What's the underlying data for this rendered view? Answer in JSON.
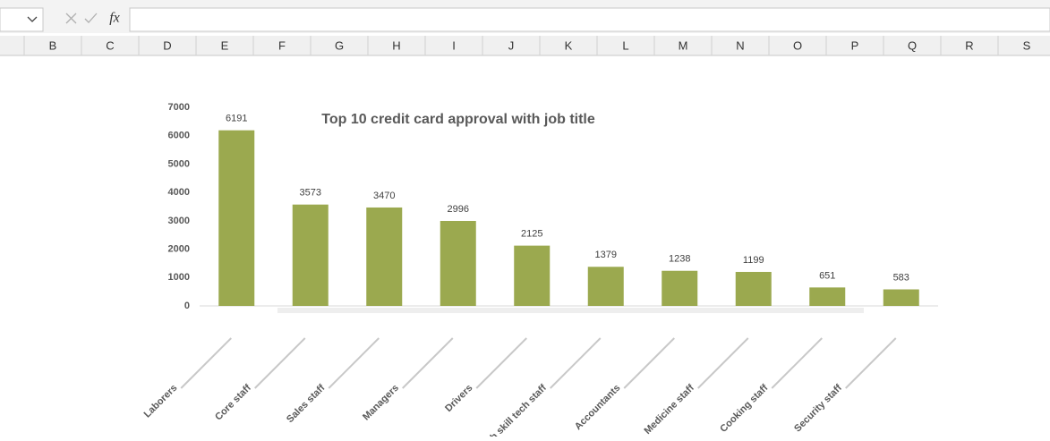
{
  "formula_bar": {
    "function_icon": "fx"
  },
  "column_headers": [
    "B",
    "C",
    "D",
    "E",
    "F",
    "G",
    "H",
    "I",
    "J",
    "K",
    "L",
    "M",
    "N",
    "O",
    "P",
    "Q",
    "R",
    "S"
  ],
  "chart_data": {
    "type": "bar",
    "title": "Top 10 credit card approval  with job title",
    "categories": [
      "Laborers",
      "Core staff",
      "Sales staff",
      "Managers",
      "Drivers",
      "High skill tech staff",
      "Accountants",
      "Medicine staff",
      "Cooking staff",
      "Security staff"
    ],
    "values": [
      6191,
      3573,
      3470,
      2996,
      2125,
      1379,
      1238,
      1199,
      651,
      583
    ],
    "color": "#9ba94f",
    "ylim": [
      0,
      7000
    ],
    "yticks": [
      0,
      1000,
      2000,
      3000,
      4000,
      5000,
      6000,
      7000
    ],
    "grid": false
  }
}
